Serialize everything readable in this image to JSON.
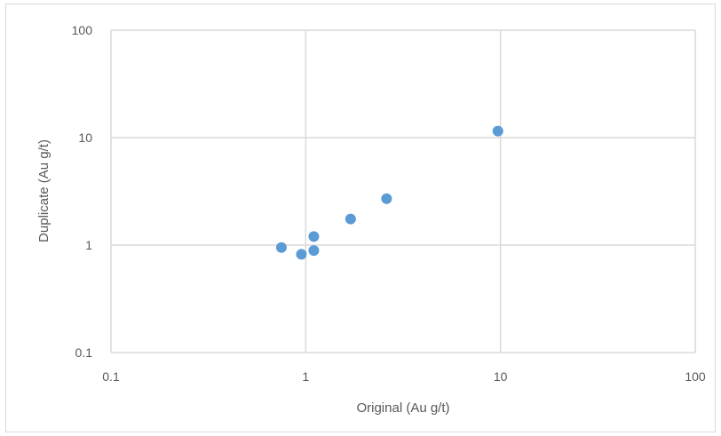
{
  "chart_data": {
    "type": "scatter",
    "title": "",
    "xlabel": "Original (Au g/t)",
    "ylabel": "Duplicate (Au g/t)",
    "xscale": "log",
    "yscale": "log",
    "xlim": [
      0.1,
      100
    ],
    "ylim": [
      0.1,
      100
    ],
    "xticks": [
      "0.1",
      "1",
      "10",
      "100"
    ],
    "yticks": [
      "0.1",
      "1",
      "10",
      "100"
    ],
    "grid": true,
    "legend": "none",
    "marker_color": "#5b9bd5",
    "gridline_color": "#d9d9d9",
    "points": [
      {
        "x": 0.75,
        "y": 0.95
      },
      {
        "x": 0.95,
        "y": 0.82
      },
      {
        "x": 1.1,
        "y": 0.89
      },
      {
        "x": 1.1,
        "y": 1.2
      },
      {
        "x": 1.7,
        "y": 1.75
      },
      {
        "x": 2.6,
        "y": 2.7
      },
      {
        "x": 9.7,
        "y": 11.5
      }
    ]
  }
}
